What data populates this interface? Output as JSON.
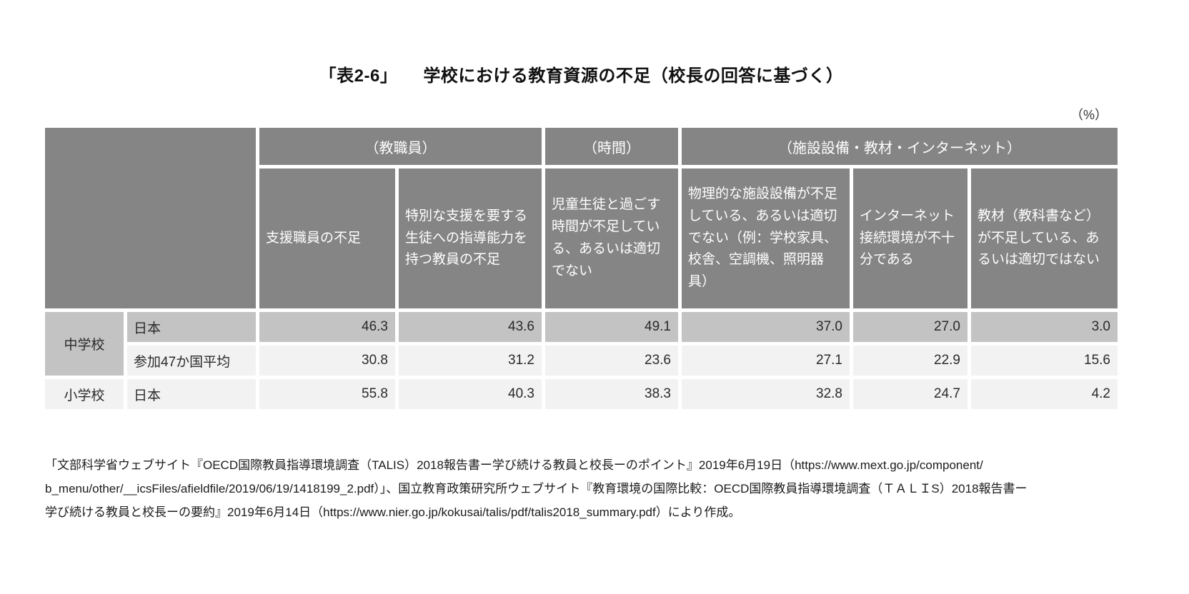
{
  "title": {
    "tag": "「表2-6」",
    "text": "学校における教育資源の不足（校長の回答に基づく）"
  },
  "unit_label": "（%）",
  "colors": {
    "header_bg": "#858585",
    "header_text": "#ffffff",
    "highlight_row_bg": "#c3c3c3",
    "normal_row_bg": "#f2f2f2"
  },
  "table": {
    "group_headers": [
      {
        "label": "（教職員）"
      },
      {
        "label": "（時間）"
      },
      {
        "label": "（施設設備・教材・インターネット）"
      }
    ],
    "column_headers": [
      "支援職員の不足",
      "特別な支援を要する生徒への指導能力を持つ教員の不足",
      "児童生徒と過ごす時間が不足している、あるいは適切でない",
      "物理的な施設設備が不足している、あるいは適切でない（例：学校家具、校舎、空調機、照明器具）",
      "インターネット接続環境が不十分である",
      "教材（教科書など）が不足している、あるいは適切ではない"
    ],
    "rows": [
      {
        "school": "中学校",
        "group": "日本",
        "values": [
          "46.3",
          "43.6",
          "49.1",
          "37.0",
          "27.0",
          "3.0"
        ]
      },
      {
        "school": "",
        "group": "参加47か国平均",
        "values": [
          "30.8",
          "31.2",
          "23.6",
          "27.1",
          "22.9",
          "15.6"
        ]
      },
      {
        "school": "小学校",
        "group": "日本",
        "values": [
          "55.8",
          "40.3",
          "38.3",
          "32.8",
          "24.7",
          "4.2"
        ]
      }
    ]
  },
  "source": {
    "lines": [
      "「文部科学省ウェブサイト『OECD国際教員指導環境調査（TALIS）2018報告書ー学び続ける教員と校長ーのポイント』2019年6月19日（https://www.mext.go.jp/component/",
      "b_menu/other/__icsFiles/afieldfile/2019/06/19/1418199_2.pdf）」、国立教育政策研究所ウェブサイト『教育環境の国際比較：OECD国際教員指導環境調査（ＴＡＬＩS）2018報告書ー",
      "学び続ける教員と校長ーの要約』2019年6月14日（https://www.nier.go.jp/kokusai/talis/pdf/talis2018_summary.pdf）により作成。"
    ]
  }
}
